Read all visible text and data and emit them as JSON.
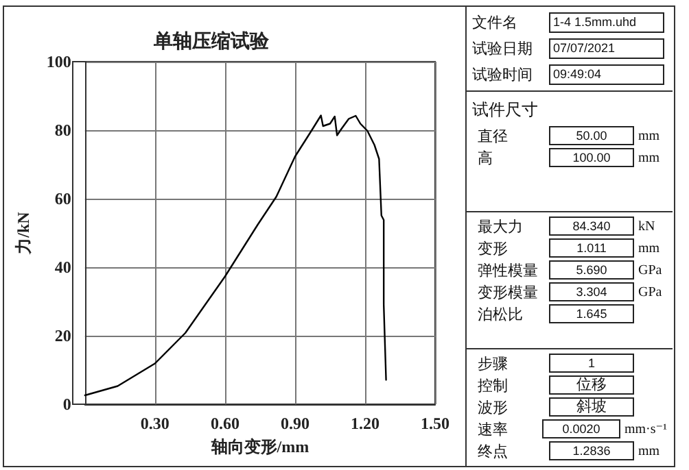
{
  "chart_data": [
    {
      "type": "line",
      "title": "单轴压缩试验",
      "xlabel": "轴向变形/mm",
      "ylabel": "力/kN",
      "color": "#000000",
      "x": [
        0,
        0.14,
        0.3,
        0.43,
        0.6,
        0.74,
        0.82,
        0.9,
        0.97,
        1.011,
        1.02,
        1.05,
        1.07,
        1.08,
        1.1,
        1.13,
        1.16,
        1.18,
        1.21,
        1.24,
        1.26,
        1.27,
        1.28,
        1.28,
        1.29
      ],
      "values": [
        2.6,
        5.3,
        11.9,
        20.8,
        37.3,
        52.4,
        60.6,
        72.3,
        79.8,
        84.3,
        81.2,
        81.9,
        84.0,
        78.5,
        80.5,
        83.3,
        84.2,
        81.9,
        79.8,
        75.7,
        71.6,
        55.1,
        53.8,
        29.1,
        7.1
      ],
      "xlim": [
        0,
        1.5
      ],
      "xticks": [
        {
          "value": 0,
          "label": null
        },
        {
          "value": 0.3,
          "label": "0.30"
        },
        {
          "value": 0.6,
          "label": "0.60"
        },
        {
          "value": 0.9,
          "label": "0.90"
        },
        {
          "value": 1.2,
          "label": "1.20"
        },
        {
          "value": 1.5,
          "label": "1.50"
        }
      ],
      "ylim": [
        0,
        100
      ],
      "yticks": [
        0,
        20,
        40,
        60,
        80,
        100
      ],
      "grid": true,
      "marker": "none",
      "line_style": "solid"
    },
    {
      "type": "other",
      "annotations": [
        "文件名",
        "1-4 1.5mm.uhd",
        "试验日期",
        "07/07/2021",
        "试验时间",
        "09:49:04",
        "试件尺寸",
        "直径",
        "50.00",
        "mm",
        "高",
        "100.00",
        "mm",
        "最大力",
        "84.340",
        "kN",
        "变形",
        "1.011",
        "mm",
        "弹性模量",
        "5.690",
        "GPa",
        "变形模量",
        "3.304",
        "GPa",
        "泊松比",
        "1.645",
        "步骤",
        "1",
        "控制",
        "位移",
        "波形",
        "斜坡",
        "速率",
        "0.0020",
        "mm·s⁻¹",
        "终点",
        "1.2836",
        "mm"
      ]
    }
  ]
}
